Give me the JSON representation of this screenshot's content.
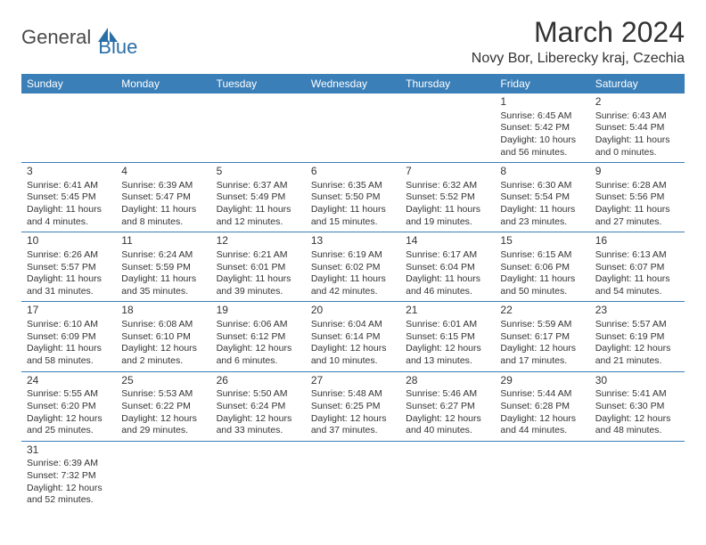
{
  "logo": {
    "main": "General",
    "sub": "Blue"
  },
  "title": "March 2024",
  "location": "Novy Bor, Liberecky kraj, Czechia",
  "colors": {
    "header_bg": "#3b7fb8",
    "header_fg": "#ffffff",
    "border": "#3b7fb8",
    "text": "#333333",
    "background": "#ffffff",
    "logo_sub": "#2b6fa8"
  },
  "weekdays": [
    "Sunday",
    "Monday",
    "Tuesday",
    "Wednesday",
    "Thursday",
    "Friday",
    "Saturday"
  ],
  "weeks": [
    [
      null,
      null,
      null,
      null,
      null,
      {
        "day": "1",
        "sunrise": "6:45 AM",
        "sunset": "5:42 PM",
        "daylight": "10 hours and 56 minutes."
      },
      {
        "day": "2",
        "sunrise": "6:43 AM",
        "sunset": "5:44 PM",
        "daylight": "11 hours and 0 minutes."
      }
    ],
    [
      {
        "day": "3",
        "sunrise": "6:41 AM",
        "sunset": "5:45 PM",
        "daylight": "11 hours and 4 minutes."
      },
      {
        "day": "4",
        "sunrise": "6:39 AM",
        "sunset": "5:47 PM",
        "daylight": "11 hours and 8 minutes."
      },
      {
        "day": "5",
        "sunrise": "6:37 AM",
        "sunset": "5:49 PM",
        "daylight": "11 hours and 12 minutes."
      },
      {
        "day": "6",
        "sunrise": "6:35 AM",
        "sunset": "5:50 PM",
        "daylight": "11 hours and 15 minutes."
      },
      {
        "day": "7",
        "sunrise": "6:32 AM",
        "sunset": "5:52 PM",
        "daylight": "11 hours and 19 minutes."
      },
      {
        "day": "8",
        "sunrise": "6:30 AM",
        "sunset": "5:54 PM",
        "daylight": "11 hours and 23 minutes."
      },
      {
        "day": "9",
        "sunrise": "6:28 AM",
        "sunset": "5:56 PM",
        "daylight": "11 hours and 27 minutes."
      }
    ],
    [
      {
        "day": "10",
        "sunrise": "6:26 AM",
        "sunset": "5:57 PM",
        "daylight": "11 hours and 31 minutes."
      },
      {
        "day": "11",
        "sunrise": "6:24 AM",
        "sunset": "5:59 PM",
        "daylight": "11 hours and 35 minutes."
      },
      {
        "day": "12",
        "sunrise": "6:21 AM",
        "sunset": "6:01 PM",
        "daylight": "11 hours and 39 minutes."
      },
      {
        "day": "13",
        "sunrise": "6:19 AM",
        "sunset": "6:02 PM",
        "daylight": "11 hours and 42 minutes."
      },
      {
        "day": "14",
        "sunrise": "6:17 AM",
        "sunset": "6:04 PM",
        "daylight": "11 hours and 46 minutes."
      },
      {
        "day": "15",
        "sunrise": "6:15 AM",
        "sunset": "6:06 PM",
        "daylight": "11 hours and 50 minutes."
      },
      {
        "day": "16",
        "sunrise": "6:13 AM",
        "sunset": "6:07 PM",
        "daylight": "11 hours and 54 minutes."
      }
    ],
    [
      {
        "day": "17",
        "sunrise": "6:10 AM",
        "sunset": "6:09 PM",
        "daylight": "11 hours and 58 minutes."
      },
      {
        "day": "18",
        "sunrise": "6:08 AM",
        "sunset": "6:10 PM",
        "daylight": "12 hours and 2 minutes."
      },
      {
        "day": "19",
        "sunrise": "6:06 AM",
        "sunset": "6:12 PM",
        "daylight": "12 hours and 6 minutes."
      },
      {
        "day": "20",
        "sunrise": "6:04 AM",
        "sunset": "6:14 PM",
        "daylight": "12 hours and 10 minutes."
      },
      {
        "day": "21",
        "sunrise": "6:01 AM",
        "sunset": "6:15 PM",
        "daylight": "12 hours and 13 minutes."
      },
      {
        "day": "22",
        "sunrise": "5:59 AM",
        "sunset": "6:17 PM",
        "daylight": "12 hours and 17 minutes."
      },
      {
        "day": "23",
        "sunrise": "5:57 AM",
        "sunset": "6:19 PM",
        "daylight": "12 hours and 21 minutes."
      }
    ],
    [
      {
        "day": "24",
        "sunrise": "5:55 AM",
        "sunset": "6:20 PM",
        "daylight": "12 hours and 25 minutes."
      },
      {
        "day": "25",
        "sunrise": "5:53 AM",
        "sunset": "6:22 PM",
        "daylight": "12 hours and 29 minutes."
      },
      {
        "day": "26",
        "sunrise": "5:50 AM",
        "sunset": "6:24 PM",
        "daylight": "12 hours and 33 minutes."
      },
      {
        "day": "27",
        "sunrise": "5:48 AM",
        "sunset": "6:25 PM",
        "daylight": "12 hours and 37 minutes."
      },
      {
        "day": "28",
        "sunrise": "5:46 AM",
        "sunset": "6:27 PM",
        "daylight": "12 hours and 40 minutes."
      },
      {
        "day": "29",
        "sunrise": "5:44 AM",
        "sunset": "6:28 PM",
        "daylight": "12 hours and 44 minutes."
      },
      {
        "day": "30",
        "sunrise": "5:41 AM",
        "sunset": "6:30 PM",
        "daylight": "12 hours and 48 minutes."
      }
    ],
    [
      {
        "day": "31",
        "sunrise": "6:39 AM",
        "sunset": "7:32 PM",
        "daylight": "12 hours and 52 minutes."
      },
      null,
      null,
      null,
      null,
      null,
      null
    ]
  ],
  "labels": {
    "sunrise": "Sunrise:",
    "sunset": "Sunset:",
    "daylight": "Daylight:"
  }
}
